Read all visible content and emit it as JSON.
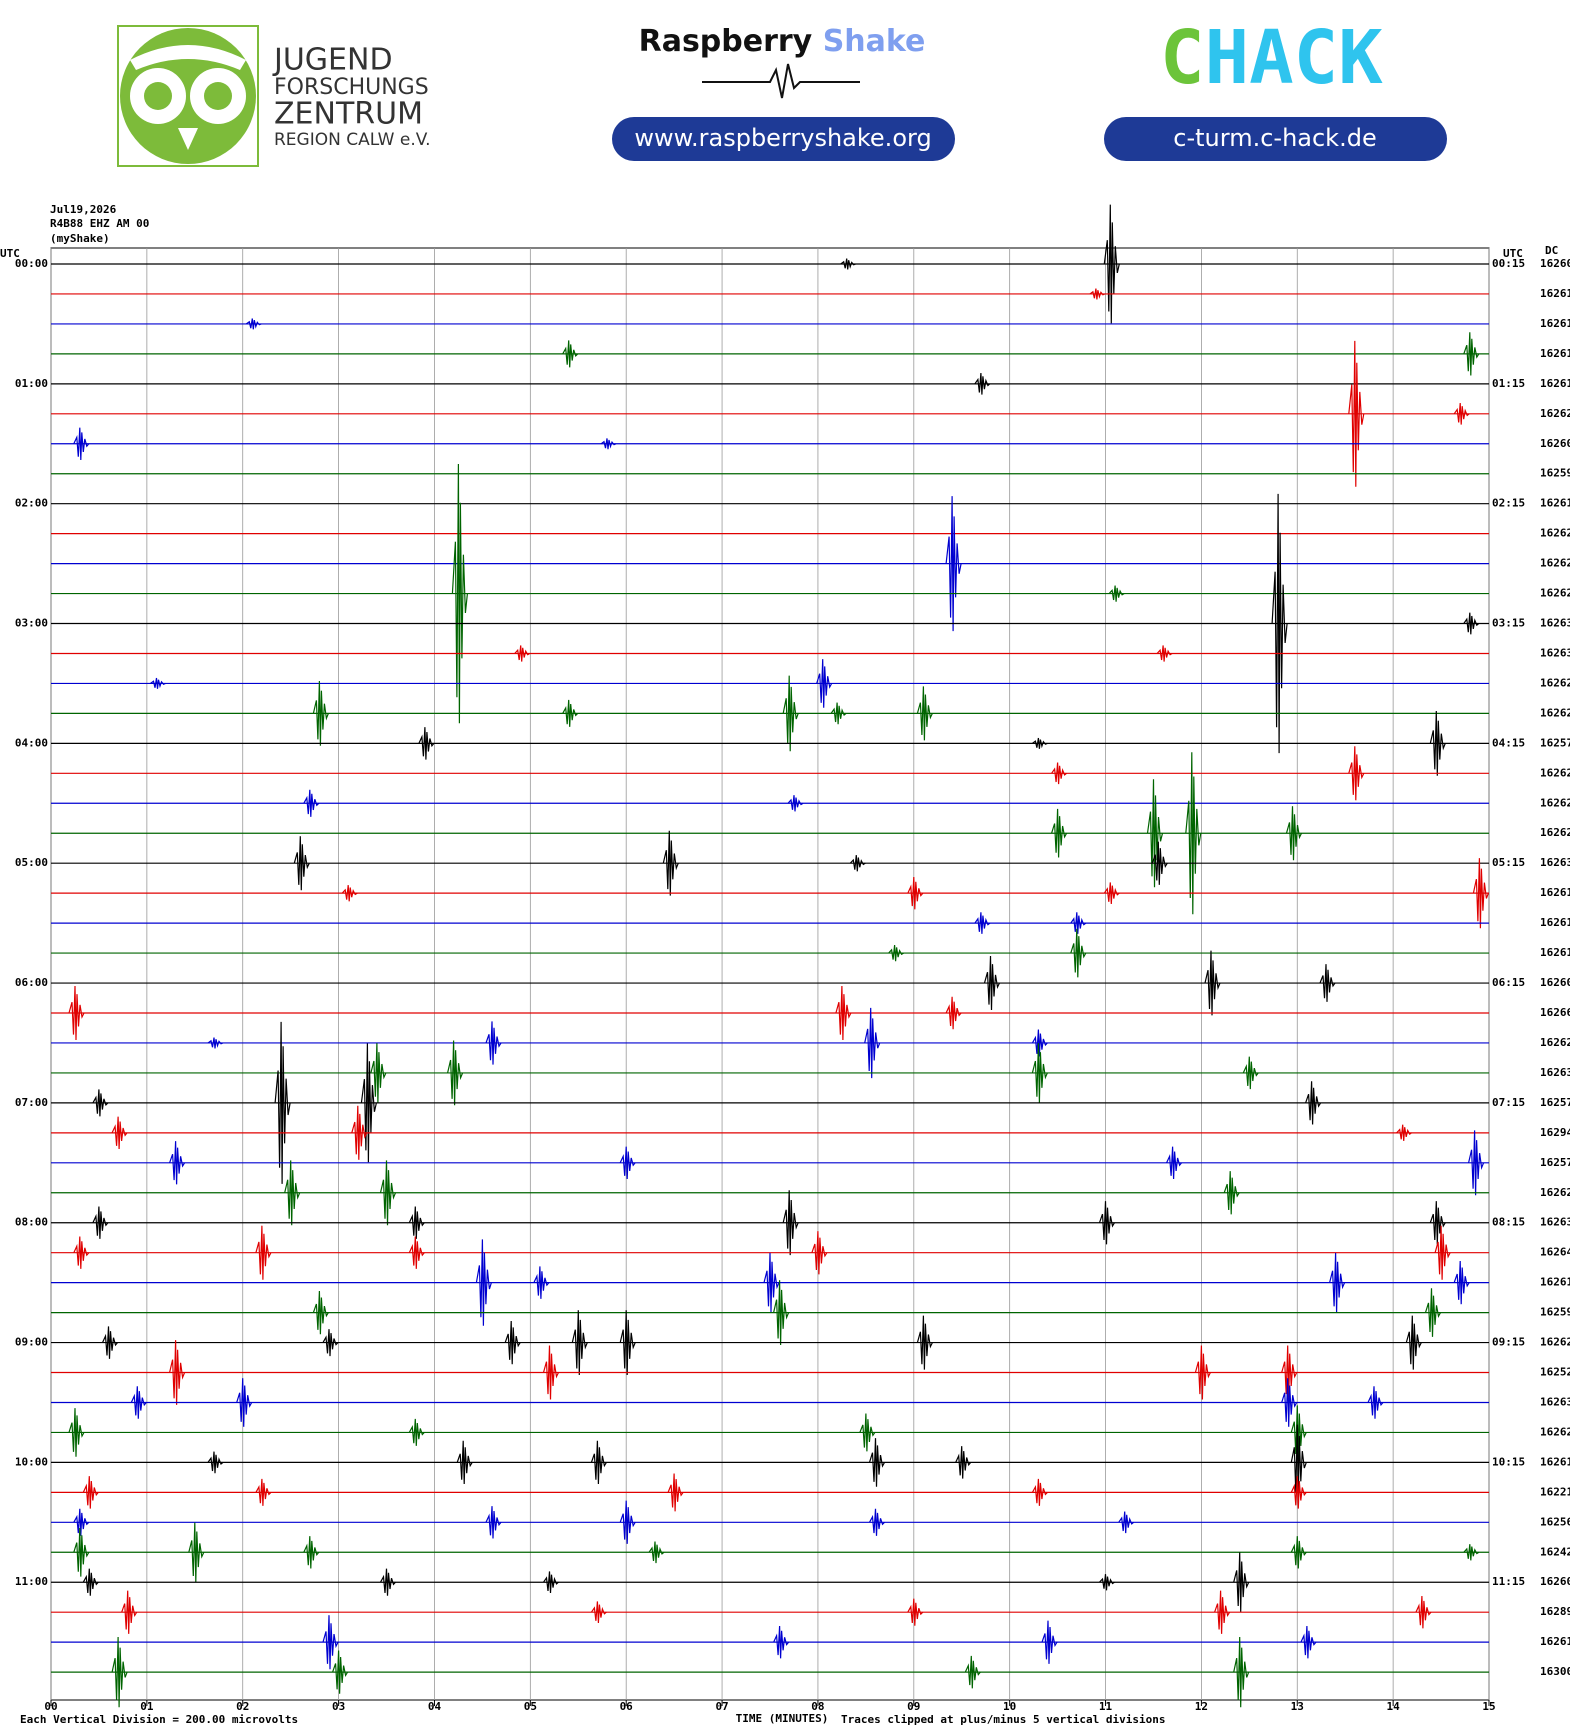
{
  "header": {
    "org_lines": [
      "JUGEND",
      "FORSCHUNGS",
      "ZENTRUM",
      "REGION CALW e.V."
    ],
    "shake_name_a": "Raspberry",
    "shake_name_b": "Shake",
    "shake_url": "www.raspberryshake.org",
    "chack_a": "C",
    "chack_b": "HACK",
    "chack_url": "c-turm.c-hack.de"
  },
  "chart_data": {
    "type": "helicorder",
    "info": [
      "Jul19,2026",
      "R4B88 EHZ AM 00",
      "(myShake)"
    ],
    "utc_left": "UTC",
    "utc_right": "UTC",
    "dc_header": "DC",
    "xlabel": "TIME (MINUTES)",
    "note_left": "Each Vertical Division =  200.00 microvolts",
    "note_right": "Traces clipped at plus/minus 5 vertical divisions",
    "xlim": [
      0,
      15
    ],
    "xticks": [
      {
        "value": 0,
        "label": "00"
      },
      {
        "value": 1,
        "label": "01"
      },
      {
        "value": 2,
        "label": "02"
      },
      {
        "value": 3,
        "label": "03"
      },
      {
        "value": 4,
        "label": "04"
      },
      {
        "value": 5,
        "label": "05"
      },
      {
        "value": 6,
        "label": "06"
      },
      {
        "value": 7,
        "label": "07"
      },
      {
        "value": 8,
        "label": "08"
      },
      {
        "value": 9,
        "label": "09"
      },
      {
        "value": 10,
        "label": "10"
      },
      {
        "value": 11,
        "label": "11"
      },
      {
        "value": 12,
        "label": "12"
      },
      {
        "value": 13,
        "label": "13"
      },
      {
        "value": 14,
        "label": "14"
      },
      {
        "value": 15,
        "label": "15"
      }
    ],
    "grid": true,
    "trace_colors": [
      "#000000",
      "#e00000",
      "#0000d0",
      "#006400"
    ],
    "rows": [
      {
        "left_label": "00:00",
        "right_label": "00:15",
        "dc": "16260",
        "events": [
          [
            11.05,
            2.2
          ],
          [
            8.3,
            0.2
          ]
        ]
      },
      {
        "left_label": null,
        "right_label": null,
        "dc": "16261",
        "events": [
          [
            10.9,
            0.2
          ]
        ]
      },
      {
        "left_label": null,
        "right_label": null,
        "dc": "16261",
        "events": [
          [
            2.1,
            0.2
          ]
        ]
      },
      {
        "left_label": null,
        "right_label": null,
        "dc": "16261",
        "events": [
          [
            5.4,
            0.5
          ],
          [
            14.8,
            0.8
          ]
        ]
      },
      {
        "left_label": "01:00",
        "right_label": "01:15",
        "dc": "16261",
        "events": [
          [
            9.7,
            0.4
          ]
        ]
      },
      {
        "left_label": null,
        "right_label": null,
        "dc": "16262",
        "events": [
          [
            13.6,
            2.7
          ],
          [
            14.7,
            0.4
          ]
        ]
      },
      {
        "left_label": null,
        "right_label": null,
        "dc": "16260",
        "events": [
          [
            0.3,
            0.6
          ],
          [
            5.8,
            0.2
          ]
        ]
      },
      {
        "left_label": null,
        "right_label": null,
        "dc": "16259",
        "events": []
      },
      {
        "left_label": "02:00",
        "right_label": "02:15",
        "dc": "16261",
        "events": []
      },
      {
        "left_label": null,
        "right_label": null,
        "dc": "16262",
        "events": []
      },
      {
        "left_label": null,
        "right_label": null,
        "dc": "16262",
        "events": [
          [
            9.4,
            2.5
          ]
        ]
      },
      {
        "left_label": null,
        "right_label": null,
        "dc": "16262",
        "events": [
          [
            4.25,
            4.8
          ],
          [
            11.1,
            0.3
          ]
        ]
      },
      {
        "left_label": "03:00",
        "right_label": "03:15",
        "dc": "16263",
        "events": [
          [
            12.8,
            4.8
          ],
          [
            14.8,
            0.4
          ]
        ]
      },
      {
        "left_label": null,
        "right_label": null,
        "dc": "16263",
        "events": [
          [
            4.9,
            0.3
          ],
          [
            11.6,
            0.3
          ]
        ]
      },
      {
        "left_label": null,
        "right_label": null,
        "dc": "16262",
        "events": [
          [
            8.05,
            0.9
          ],
          [
            1.1,
            0.2
          ]
        ]
      },
      {
        "left_label": null,
        "right_label": null,
        "dc": "16262",
        "events": [
          [
            2.8,
            1.2
          ],
          [
            5.4,
            0.5
          ],
          [
            7.7,
            1.4
          ],
          [
            9.1,
            1.0
          ],
          [
            8.2,
            0.4
          ]
        ]
      },
      {
        "left_label": "04:00",
        "right_label": "04:15",
        "dc": "16257",
        "events": [
          [
            3.9,
            0.6
          ],
          [
            10.3,
            0.2
          ],
          [
            14.45,
            1.2
          ]
        ]
      },
      {
        "left_label": null,
        "right_label": null,
        "dc": "16262",
        "events": [
          [
            10.5,
            0.4
          ],
          [
            13.6,
            1.0
          ]
        ]
      },
      {
        "left_label": null,
        "right_label": null,
        "dc": "16262",
        "events": [
          [
            2.7,
            0.5
          ],
          [
            7.75,
            0.3
          ]
        ]
      },
      {
        "left_label": null,
        "right_label": null,
        "dc": "16262",
        "events": [
          [
            10.5,
            0.9
          ],
          [
            11.9,
            3.0
          ],
          [
            12.95,
            1.0
          ],
          [
            11.5,
            2.0
          ]
        ]
      },
      {
        "left_label": "05:00",
        "right_label": "05:15",
        "dc": "16263",
        "events": [
          [
            2.6,
            1.0
          ],
          [
            6.45,
            1.2
          ],
          [
            8.4,
            0.3
          ],
          [
            11.55,
            0.8
          ]
        ]
      },
      {
        "left_label": null,
        "right_label": null,
        "dc": "16261",
        "events": [
          [
            3.1,
            0.3
          ],
          [
            9.0,
            0.6
          ],
          [
            11.05,
            0.4
          ],
          [
            14.9,
            1.3
          ]
        ]
      },
      {
        "left_label": null,
        "right_label": null,
        "dc": "16261",
        "events": [
          [
            9.7,
            0.4
          ],
          [
            10.7,
            0.4
          ]
        ]
      },
      {
        "left_label": null,
        "right_label": null,
        "dc": "16261",
        "events": [
          [
            8.8,
            0.3
          ],
          [
            10.7,
            0.9
          ]
        ]
      },
      {
        "left_label": "06:00",
        "right_label": "06:15",
        "dc": "16260",
        "events": [
          [
            9.8,
            1.0
          ],
          [
            12.1,
            1.2
          ],
          [
            13.3,
            0.7
          ]
        ]
      },
      {
        "left_label": null,
        "right_label": null,
        "dc": "16266",
        "events": [
          [
            0.25,
            1.0
          ],
          [
            8.25,
            1.0
          ],
          [
            9.4,
            0.6
          ]
        ]
      },
      {
        "left_label": null,
        "right_label": null,
        "dc": "16262",
        "events": [
          [
            1.7,
            0.2
          ],
          [
            4.6,
            0.8
          ],
          [
            8.55,
            1.3
          ],
          [
            10.3,
            0.5
          ]
        ]
      },
      {
        "left_label": null,
        "right_label": null,
        "dc": "16263",
        "events": [
          [
            3.4,
            1.1
          ],
          [
            4.2,
            1.2
          ],
          [
            10.3,
            1.1
          ],
          [
            12.5,
            0.6
          ]
        ]
      },
      {
        "left_label": "07:00",
        "right_label": "07:15",
        "dc": "16257",
        "events": [
          [
            0.5,
            0.5
          ],
          [
            2.4,
            3.0
          ],
          [
            3.3,
            2.2
          ],
          [
            13.15,
            0.8
          ]
        ]
      },
      {
        "left_label": null,
        "right_label": null,
        "dc": "16294",
        "events": [
          [
            0.7,
            0.6
          ],
          [
            3.2,
            1.0
          ],
          [
            14.1,
            0.3
          ]
        ]
      },
      {
        "left_label": null,
        "right_label": null,
        "dc": "16257",
        "events": [
          [
            1.3,
            0.8
          ],
          [
            6.0,
            0.6
          ],
          [
            11.7,
            0.6
          ],
          [
            14.85,
            1.2
          ]
        ]
      },
      {
        "left_label": null,
        "right_label": null,
        "dc": "16262",
        "events": [
          [
            2.5,
            1.2
          ],
          [
            3.5,
            1.2
          ],
          [
            12.3,
            0.8
          ]
        ]
      },
      {
        "left_label": "08:00",
        "right_label": "08:15",
        "dc": "16263",
        "events": [
          [
            0.5,
            0.6
          ],
          [
            3.8,
            0.6
          ],
          [
            7.7,
            1.2
          ],
          [
            11.0,
            0.8
          ],
          [
            14.45,
            0.8
          ]
        ]
      },
      {
        "left_label": null,
        "right_label": null,
        "dc": "16264",
        "events": [
          [
            0.3,
            0.6
          ],
          [
            2.2,
            1.0
          ],
          [
            3.8,
            0.6
          ],
          [
            8.0,
            0.8
          ],
          [
            14.5,
            1.0
          ]
        ]
      },
      {
        "left_label": null,
        "right_label": null,
        "dc": "16261",
        "events": [
          [
            4.5,
            1.6
          ],
          [
            5.1,
            0.6
          ],
          [
            7.5,
            1.1
          ],
          [
            13.4,
            1.1
          ],
          [
            14.7,
            0.8
          ]
        ]
      },
      {
        "left_label": null,
        "right_label": null,
        "dc": "16259",
        "events": [
          [
            2.8,
            0.8
          ],
          [
            7.6,
            1.2
          ],
          [
            14.4,
            0.9
          ]
        ]
      },
      {
        "left_label": "09:00",
        "right_label": "09:15",
        "dc": "16262",
        "events": [
          [
            0.6,
            0.6
          ],
          [
            2.9,
            0.5
          ],
          [
            4.8,
            0.8
          ],
          [
            5.5,
            1.2
          ],
          [
            6.0,
            1.2
          ],
          [
            9.1,
            1.0
          ],
          [
            14.2,
            1.0
          ]
        ]
      },
      {
        "left_label": null,
        "right_label": null,
        "dc": "16252",
        "events": [
          [
            1.3,
            1.2
          ],
          [
            5.2,
            1.0
          ],
          [
            12.0,
            1.0
          ],
          [
            12.9,
            1.0
          ]
        ]
      },
      {
        "left_label": null,
        "right_label": null,
        "dc": "16263",
        "events": [
          [
            0.9,
            0.6
          ],
          [
            2.0,
            0.9
          ],
          [
            12.9,
            0.9
          ],
          [
            13.8,
            0.6
          ]
        ]
      },
      {
        "left_label": null,
        "right_label": null,
        "dc": "16262",
        "events": [
          [
            0.25,
            0.9
          ],
          [
            3.8,
            0.5
          ],
          [
            8.5,
            0.7
          ],
          [
            13.0,
            1.0
          ]
        ]
      },
      {
        "left_label": "10:00",
        "right_label": "10:15",
        "dc": "16261",
        "events": [
          [
            1.7,
            0.4
          ],
          [
            4.3,
            0.8
          ],
          [
            5.7,
            0.8
          ],
          [
            8.6,
            0.9
          ],
          [
            9.5,
            0.6
          ],
          [
            13.0,
            1.4
          ]
        ]
      },
      {
        "left_label": null,
        "right_label": null,
        "dc": "16221",
        "events": [
          [
            0.4,
            0.6
          ],
          [
            2.2,
            0.5
          ],
          [
            6.5,
            0.7
          ],
          [
            10.3,
            0.5
          ],
          [
            13.0,
            0.6
          ]
        ]
      },
      {
        "left_label": null,
        "right_label": null,
        "dc": "16256",
        "events": [
          [
            0.3,
            0.5
          ],
          [
            4.6,
            0.6
          ],
          [
            6.0,
            0.8
          ],
          [
            8.6,
            0.5
          ],
          [
            11.2,
            0.4
          ]
        ]
      },
      {
        "left_label": null,
        "right_label": null,
        "dc": "16242",
        "events": [
          [
            0.3,
            0.9
          ],
          [
            1.5,
            1.1
          ],
          [
            2.7,
            0.6
          ],
          [
            6.3,
            0.4
          ],
          [
            13.0,
            0.6
          ],
          [
            14.8,
            0.3
          ]
        ]
      },
      {
        "left_label": "11:00",
        "right_label": "11:15",
        "dc": "16260",
        "events": [
          [
            0.4,
            0.5
          ],
          [
            3.5,
            0.5
          ],
          [
            5.2,
            0.4
          ],
          [
            11.0,
            0.3
          ],
          [
            12.4,
            1.1
          ]
        ]
      },
      {
        "left_label": null,
        "right_label": null,
        "dc": "16289",
        "events": [
          [
            0.8,
            0.8
          ],
          [
            5.7,
            0.4
          ],
          [
            9.0,
            0.5
          ],
          [
            12.2,
            0.8
          ],
          [
            14.3,
            0.6
          ]
        ]
      },
      {
        "left_label": null,
        "right_label": null,
        "dc": "16261",
        "events": [
          [
            2.9,
            1.0
          ],
          [
            7.6,
            0.6
          ],
          [
            10.4,
            0.8
          ],
          [
            13.1,
            0.6
          ]
        ]
      },
      {
        "left_label": null,
        "right_label": null,
        "dc": "16300",
        "events": [
          [
            0.7,
            1.3
          ],
          [
            3.0,
            0.8
          ],
          [
            9.6,
            0.6
          ],
          [
            12.4,
            1.3
          ]
        ]
      }
    ]
  }
}
